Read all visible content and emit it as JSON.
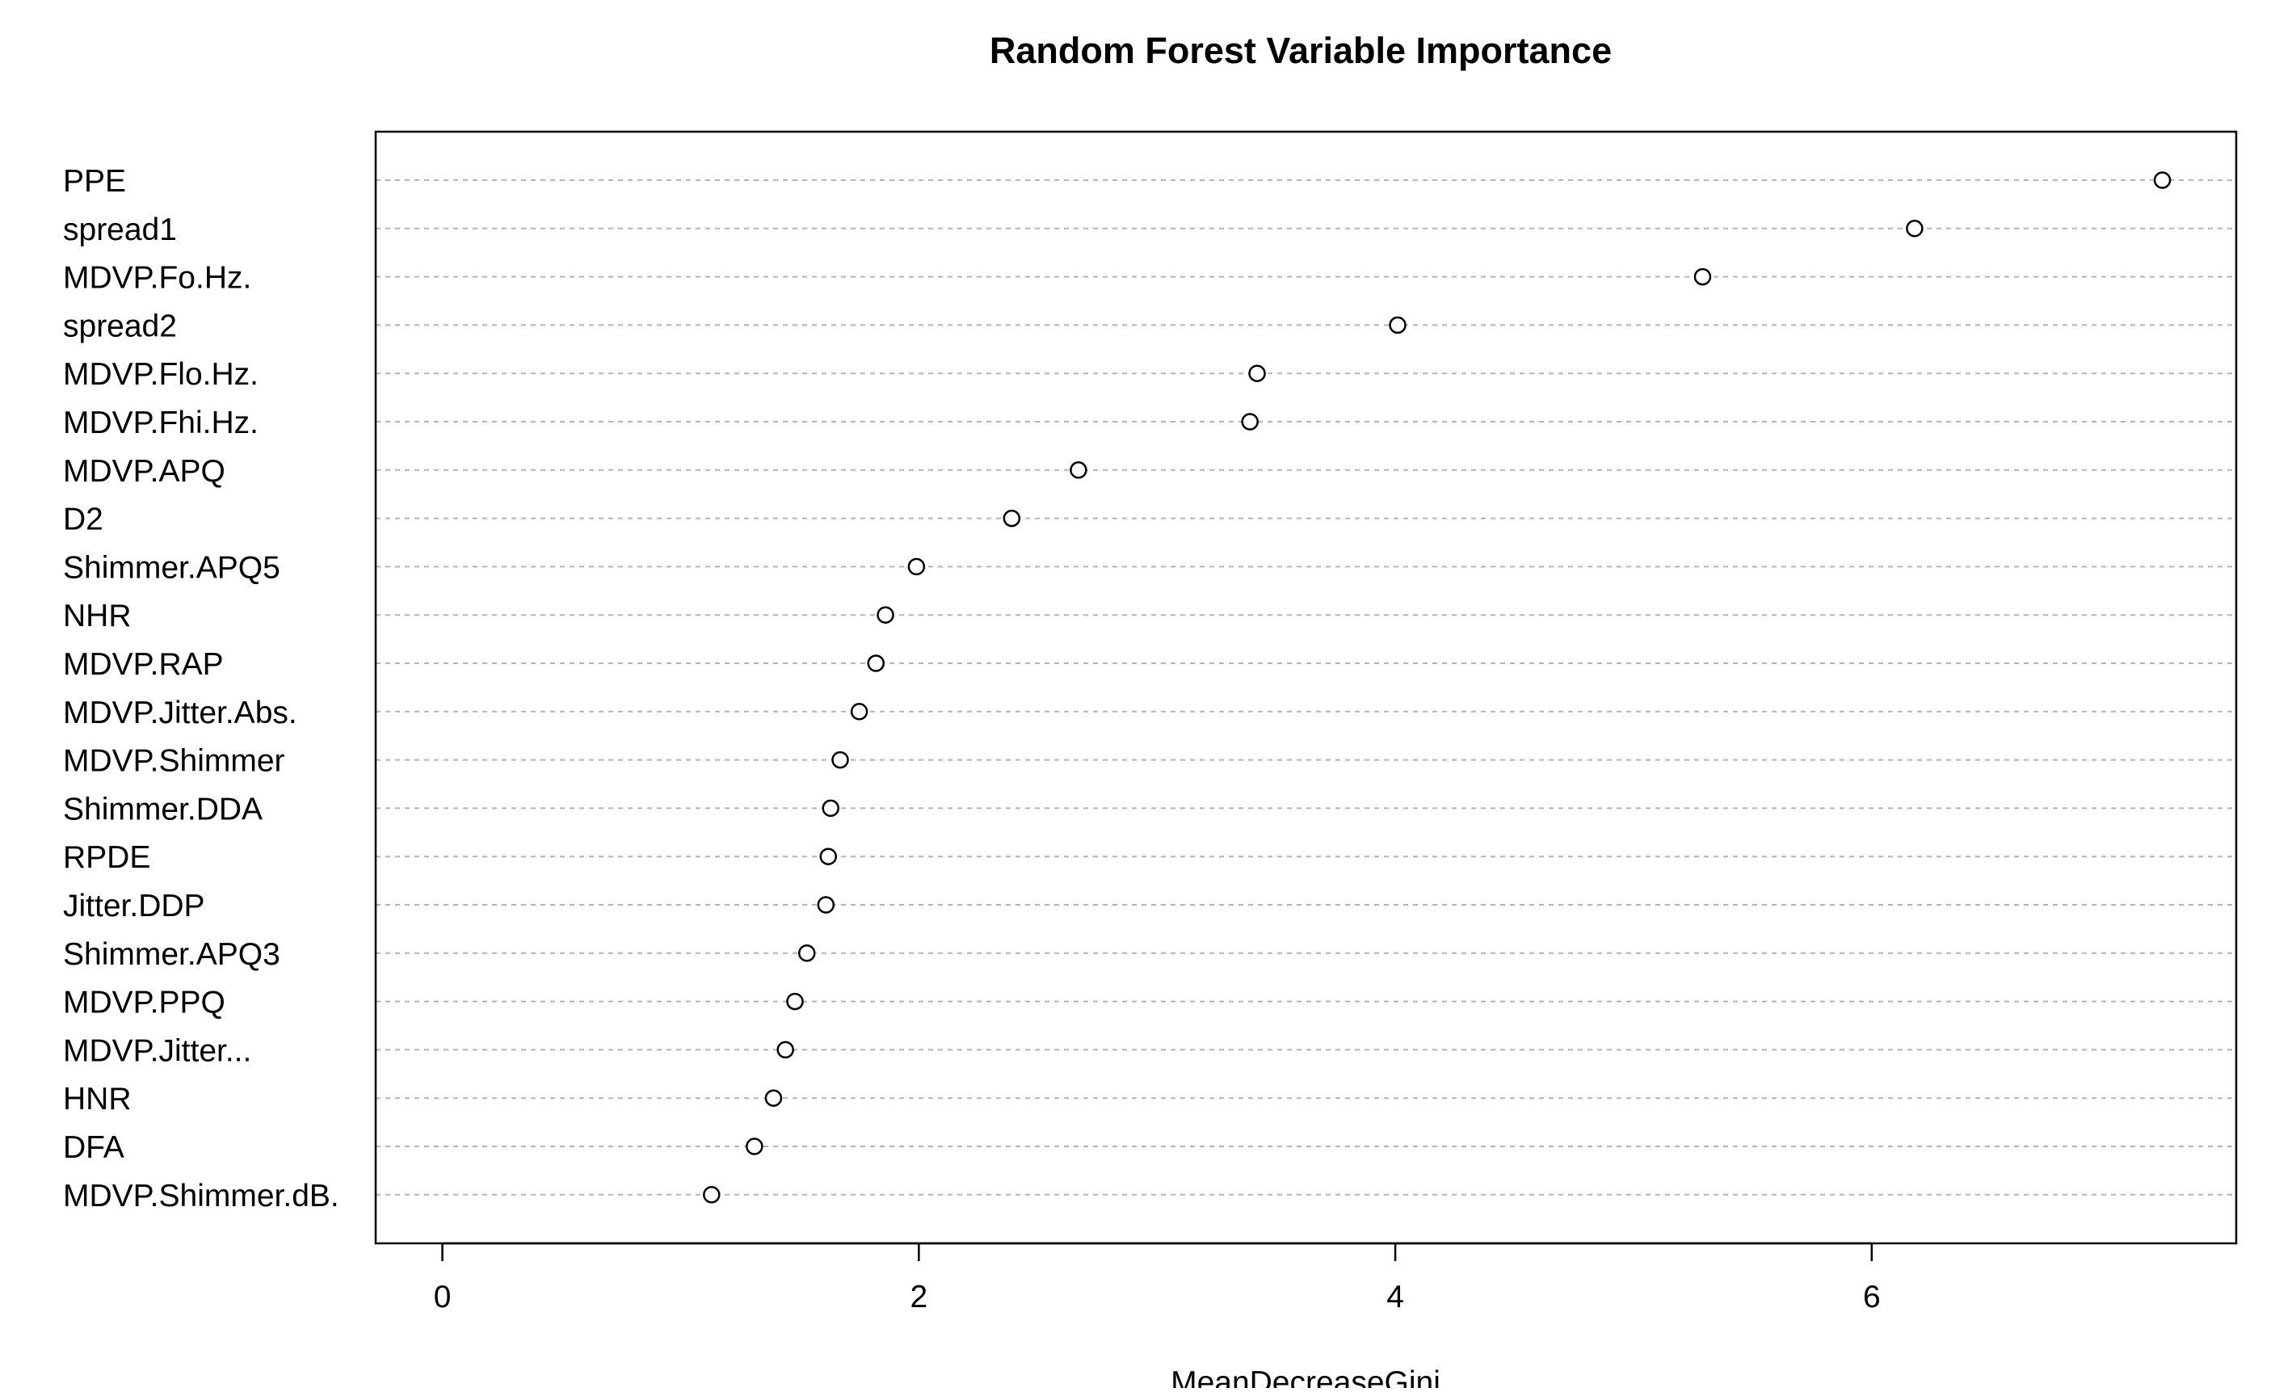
{
  "chart_data": {
    "type": "scatter",
    "title": "Random Forest Variable Importance",
    "xlabel": "MeanDecreaseGini",
    "ylabel": "",
    "xlim": [
      -0.28,
      7.53
    ],
    "xticks": [
      0,
      2,
      4,
      6
    ],
    "grid": "horizontal dashed",
    "legend": "none",
    "categories": [
      "PPE",
      "spread1",
      "MDVP.Fo.Hz.",
      "spread2",
      "MDVP.Flo.Hz.",
      "MDVP.Fhi.Hz.",
      "MDVP.APQ",
      "D2",
      "Shimmer.APQ5",
      "NHR",
      "MDVP.RAP",
      "MDVP.Jitter.Abs.",
      "MDVP.Shimmer",
      "Shimmer.DDA",
      "RPDE",
      "Jitter.DDP",
      "Shimmer.APQ3",
      "MDVP.PPQ",
      "MDVP.Jitter...",
      "HNR",
      "DFA",
      "MDVP.Shimmer.dB."
    ],
    "values": [
      7.22,
      6.18,
      5.29,
      4.01,
      3.42,
      3.39,
      2.67,
      2.39,
      1.99,
      1.86,
      1.82,
      1.75,
      1.67,
      1.63,
      1.62,
      1.61,
      1.53,
      1.48,
      1.44,
      1.39,
      1.31,
      1.13
    ]
  }
}
